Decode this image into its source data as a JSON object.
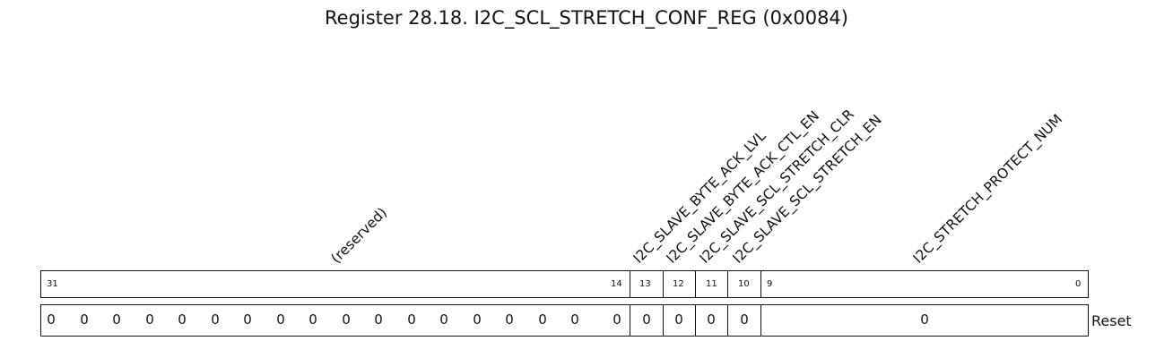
{
  "title": "Register 28.18. I2C_SCL_STRETCH_CONF_REG (0x0084)",
  "fields": [
    {
      "name": "(reserved)",
      "bits_hi": "31",
      "bits_lo": "14",
      "reset": [
        "0",
        "0",
        "0",
        "0",
        "0",
        "0",
        "0",
        "0",
        "0",
        "0",
        "0",
        "0",
        "0",
        "0",
        "0",
        "0",
        "0",
        "0"
      ]
    },
    {
      "name": "I2C_SLAVE_BYTE_ACK_LVL",
      "bit": "13",
      "reset": "0"
    },
    {
      "name": "I2C_SLAVE_BYTE_ACK_CTL_EN",
      "bit": "12",
      "reset": "0"
    },
    {
      "name": "I2C_SLAVE_SCL_STRETCH_CLR",
      "bit": "11",
      "reset": "0"
    },
    {
      "name": "I2C_SLAVE_SCL_STRETCH_EN",
      "bit": "10",
      "reset": "0"
    },
    {
      "name": "I2C_STRETCH_PROTECT_NUM",
      "bits_hi": "9",
      "bits_lo": "0",
      "reset": "0"
    }
  ],
  "reset_label": "Reset"
}
